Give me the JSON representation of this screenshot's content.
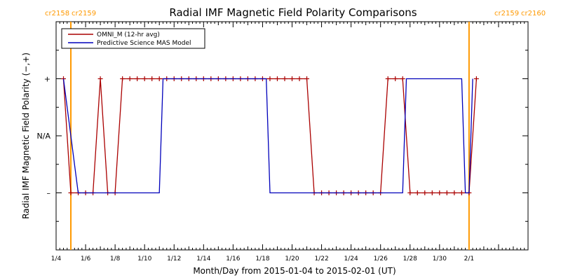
{
  "chart_data": {
    "type": "line",
    "title": "Radial IMF Magnetic Field Polarity Comparisons",
    "xlabel": "Month/Day from 2015-01-04 to 2015-02-01 (UT)",
    "ylabel": "Radial IMF Magnetic Field Polarity (−,+)",
    "x_ticks": [
      "1/4",
      "1/6",
      "1/8",
      "1/10",
      "1/12",
      "1/14",
      "1/16",
      "1/18",
      "1/20",
      "1/22",
      "1/24",
      "1/26",
      "1/28",
      "1/30",
      "2/1"
    ],
    "y_ticks": [
      {
        "label": "–",
        "value": -1
      },
      {
        "label": "N/A",
        "value": 0
      },
      {
        "label": "+",
        "value": 1
      }
    ],
    "xlim": [
      "2015-01-04",
      "2015-02-05"
    ],
    "ylim": [
      -2,
      2
    ],
    "legend": {
      "placement": "top-left",
      "entries": [
        "OMNI_M (12-hr avg)",
        "Predictive Science MAS Model"
      ]
    },
    "rotation_markers": [
      {
        "date": "2015-01-05",
        "label_left": "cr2158",
        "label_right": "cr2159",
        "color": "#ff9900"
      },
      {
        "date": "2015-02-01",
        "label_left": "cr2159",
        "label_right": "cr2160",
        "color": "#ff9900"
      }
    ],
    "series": [
      {
        "name": "OMNI_M (12-hr avg)",
        "color": "#aa0000",
        "marker": "plus",
        "points": [
          [
            "2015-01-04 12:00",
            1
          ],
          [
            "2015-01-05 00:00",
            -1
          ],
          [
            "2015-01-05 12:00",
            -1
          ],
          [
            "2015-01-06 00:00",
            -1
          ],
          [
            "2015-01-06 12:00",
            -1
          ],
          [
            "2015-01-07 00:00",
            1
          ],
          [
            "2015-01-07 12:00",
            -1
          ],
          [
            "2015-01-08 00:00",
            -1
          ],
          [
            "2015-01-08 12:00",
            1
          ],
          [
            "2015-01-09 00:00",
            1
          ],
          [
            "2015-01-09 12:00",
            1
          ],
          [
            "2015-01-10 00:00",
            1
          ],
          [
            "2015-01-10 12:00",
            1
          ],
          [
            "2015-01-11 00:00",
            1
          ],
          [
            "2015-01-11 12:00",
            1
          ],
          [
            "2015-01-12 00:00",
            1
          ],
          [
            "2015-01-12 12:00",
            1
          ],
          [
            "2015-01-13 00:00",
            1
          ],
          [
            "2015-01-13 12:00",
            1
          ],
          [
            "2015-01-14 00:00",
            1
          ],
          [
            "2015-01-14 12:00",
            1
          ],
          [
            "2015-01-15 00:00",
            1
          ],
          [
            "2015-01-15 12:00",
            1
          ],
          [
            "2015-01-16 00:00",
            1
          ],
          [
            "2015-01-16 12:00",
            1
          ],
          [
            "2015-01-17 00:00",
            1
          ],
          [
            "2015-01-17 12:00",
            1
          ],
          [
            "2015-01-18 00:00",
            1
          ],
          [
            "2015-01-18 12:00",
            1
          ],
          [
            "2015-01-19 00:00",
            1
          ],
          [
            "2015-01-19 12:00",
            1
          ],
          [
            "2015-01-20 00:00",
            1
          ],
          [
            "2015-01-20 12:00",
            1
          ],
          [
            "2015-01-21 00:00",
            1
          ],
          [
            "2015-01-21 12:00",
            -1
          ],
          [
            "2015-01-22 00:00",
            -1
          ],
          [
            "2015-01-22 12:00",
            -1
          ],
          [
            "2015-01-23 00:00",
            -1
          ],
          [
            "2015-01-23 12:00",
            -1
          ],
          [
            "2015-01-24 00:00",
            -1
          ],
          [
            "2015-01-24 12:00",
            -1
          ],
          [
            "2015-01-25 00:00",
            -1
          ],
          [
            "2015-01-25 12:00",
            -1
          ],
          [
            "2015-01-26 00:00",
            -1
          ],
          [
            "2015-01-26 12:00",
            1
          ],
          [
            "2015-01-27 00:00",
            1
          ],
          [
            "2015-01-27 12:00",
            1
          ],
          [
            "2015-01-28 00:00",
            -1
          ],
          [
            "2015-01-28 12:00",
            -1
          ],
          [
            "2015-01-29 00:00",
            -1
          ],
          [
            "2015-01-29 12:00",
            -1
          ],
          [
            "2015-01-30 00:00",
            -1
          ],
          [
            "2015-01-30 12:00",
            -1
          ],
          [
            "2015-01-31 00:00",
            -1
          ],
          [
            "2015-01-31 12:00",
            -1
          ],
          [
            "2015-02-01 00:00",
            -1
          ],
          [
            "2015-02-01 12:00",
            1
          ]
        ]
      },
      {
        "name": "Predictive Science MAS Model",
        "color": "#0000bb",
        "marker": "none",
        "points": [
          [
            "2015-01-04 12:00",
            1
          ],
          [
            "2015-01-05 12:00",
            -1
          ],
          [
            "2015-01-11 00:00",
            -1
          ],
          [
            "2015-01-11 06:00",
            1
          ],
          [
            "2015-01-18 06:00",
            1
          ],
          [
            "2015-01-18 12:00",
            -1
          ],
          [
            "2015-01-27 12:00",
            -1
          ],
          [
            "2015-01-27 18:00",
            1
          ],
          [
            "2015-01-31 12:00",
            1
          ],
          [
            "2015-01-31 18:00",
            -1
          ],
          [
            "2015-02-01 00:00",
            -1
          ],
          [
            "2015-02-01 06:00",
            1
          ]
        ]
      }
    ]
  }
}
